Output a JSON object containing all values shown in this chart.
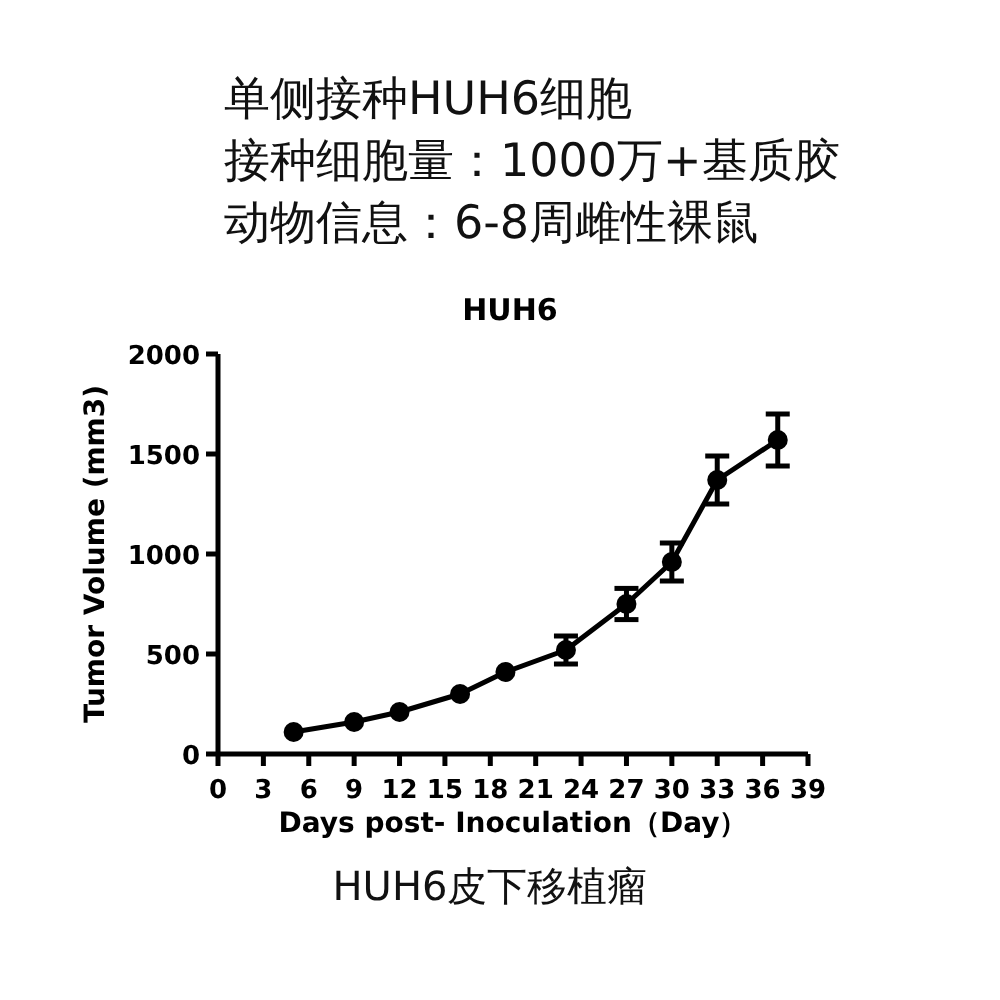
{
  "chart_data": {
    "type": "line",
    "title": "HUH6",
    "annotations": [
      "单侧接种HUH6细胞",
      "接种细胞量：1000万+基质胶",
      "动物信息：6-8周雌性裸鼠",
      "HUH6皮下移植瘤"
    ],
    "xlabel": "Days post- Inoculation（Day）",
    "ylabel": "Tumor Volume (mm3)",
    "x": [
      5,
      9,
      12,
      16,
      19,
      23,
      27,
      30,
      33,
      37
    ],
    "series": [
      {
        "color": "#000000",
        "values": [
          110,
          160,
          210,
          300,
          410,
          520,
          750,
          960,
          1370,
          1570
        ],
        "errors": [
          null,
          null,
          null,
          null,
          null,
          70,
          78,
          95,
          120,
          130
        ]
      }
    ],
    "xlim": [
      0,
      39
    ],
    "xticks": [
      0,
      3,
      6,
      9,
      12,
      15,
      18,
      21,
      24,
      27,
      30,
      33,
      36,
      39
    ],
    "ylim": [
      0,
      2000
    ],
    "yticks": [
      0,
      500,
      1000,
      1500,
      2000
    ],
    "marker": "circle",
    "line_style": "solid",
    "grid": false
  }
}
